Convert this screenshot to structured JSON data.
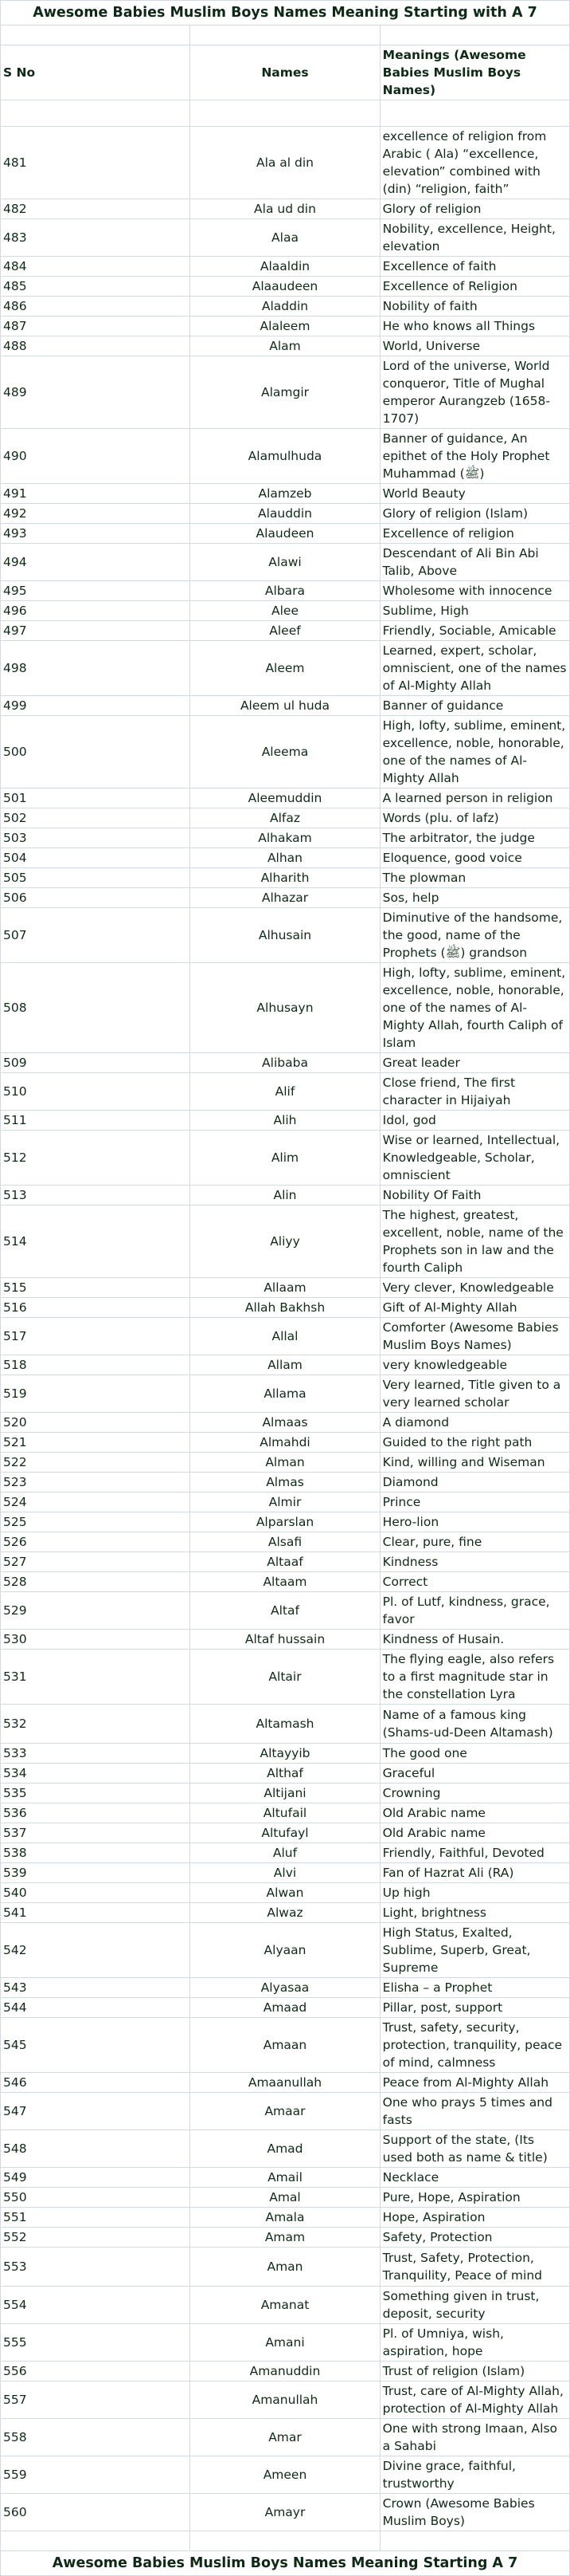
{
  "title": "Awesome Babies Muslim Boys Names Meaning Starting with A 7",
  "footer_title": "Awesome Babies Muslim Boys Names Meaning Starting A 7",
  "columns": [
    "S No",
    "Names",
    "Meanings (Awesome Babies Muslim Boys Names)"
  ],
  "colors": {
    "text": "#0f2a16",
    "border": "#d3d9e2"
  },
  "rows": [
    [
      "481",
      "Ala al din",
      "excellence of religion from Arabic ( Ala) “excellence, elevation” combined with (din) “religion, faith”"
    ],
    [
      "482",
      "Ala ud din",
      "Glory of religion"
    ],
    [
      "483",
      "Alaa",
      "Nobility, excellence, Height, elevation"
    ],
    [
      "484",
      "Alaaldin",
      "Excellence of faith"
    ],
    [
      "485",
      "Alaaudeen",
      "Excellence of Religion"
    ],
    [
      "486",
      "Aladdin",
      "Nobility of faith"
    ],
    [
      "487",
      "Alaleem",
      "He who knows all Things"
    ],
    [
      "488",
      "Alam",
      "World, Universe"
    ],
    [
      "489",
      "Alamgir",
      "Lord of the universe, World conqueror, Title of Mughal emperor Aurangzeb (1658-1707)"
    ],
    [
      "490",
      "Alamulhuda",
      "Banner of guidance, An epithet of the Holy Prophet Muhammad (ﷺ)"
    ],
    [
      "491",
      "Alamzeb",
      "World Beauty"
    ],
    [
      "492",
      "Alauddin",
      "Glory of religion (Islam)"
    ],
    [
      "493",
      "Alaudeen",
      "Excellence of religion"
    ],
    [
      "494",
      "Alawi",
      "Descendant of Ali Bin Abi Talib, Above"
    ],
    [
      "495",
      "Albara",
      "Wholesome with innocence"
    ],
    [
      "496",
      "Alee",
      "Sublime, High"
    ],
    [
      "497",
      "Aleef",
      "Friendly, Sociable, Amicable"
    ],
    [
      "498",
      "Aleem",
      "Learned, expert, scholar, omniscient, one of the names of Al-Mighty Allah"
    ],
    [
      "499",
      "Aleem ul huda",
      "Banner of guidance"
    ],
    [
      "500",
      "Aleema",
      "High, lofty, sublime, eminent, excellence, noble, honorable, one of the names of Al-Mighty Allah"
    ],
    [
      "501",
      "Aleemuddin",
      "A learned person in religion"
    ],
    [
      "502",
      "Alfaz",
      "Words (plu. of lafz)"
    ],
    [
      "503",
      "Alhakam",
      "The arbitrator, the judge"
    ],
    [
      "504",
      "Alhan",
      "Eloquence, good voice"
    ],
    [
      "505",
      "Alharith",
      "The plowman"
    ],
    [
      "506",
      "Alhazar",
      "Sos, help"
    ],
    [
      "507",
      "Alhusain",
      "Diminutive of the handsome, the good, name of the Prophets (ﷺ) grandson"
    ],
    [
      "508",
      "Alhusayn",
      "High, lofty, sublime, eminent, excellence, noble, honorable, one of the names of Al-Mighty Allah, fourth Caliph of Islam"
    ],
    [
      "509",
      "Alibaba",
      "Great leader"
    ],
    [
      "510",
      "Alif",
      "Close friend, The first character in Hijaiyah"
    ],
    [
      "511",
      "Alih",
      "Idol, god"
    ],
    [
      "512",
      "Alim",
      "Wise or learned, Intellectual, Knowledgeable, Scholar, omniscient"
    ],
    [
      "513",
      "Alin",
      "Nobility Of Faith"
    ],
    [
      "514",
      "Aliyy",
      "The highest, greatest, excellent, noble, name of the Prophets son in law and the fourth Caliph"
    ],
    [
      "515",
      "Allaam",
      "Very clever, Knowledgeable"
    ],
    [
      "516",
      "Allah Bakhsh",
      "Gift of Al-Mighty Allah"
    ],
    [
      "517",
      "Allal",
      "Comforter (Awesome Babies Muslim Boys Names)"
    ],
    [
      "518",
      "Allam",
      "very knowledgeable"
    ],
    [
      "519",
      "Allama",
      "Very learned, Title given to a very learned scholar"
    ],
    [
      "520",
      "Almaas",
      "A diamond"
    ],
    [
      "521",
      "Almahdi",
      "Guided to the right path"
    ],
    [
      "522",
      "Alman",
      "Kind, willing and Wiseman"
    ],
    [
      "523",
      "Almas",
      "Diamond"
    ],
    [
      "524",
      "Almir",
      "Prince"
    ],
    [
      "525",
      "Alparslan",
      "Hero-lion"
    ],
    [
      "526",
      "Alsafi",
      "Clear, pure, fine"
    ],
    [
      "527",
      "Altaaf",
      "Kindness"
    ],
    [
      "528",
      "Altaam",
      "Correct"
    ],
    [
      "529",
      "Altaf",
      "Pl. of Lutf, kindness, grace, favor"
    ],
    [
      "530",
      "Altaf hussain",
      "Kindness of Husain."
    ],
    [
      "531",
      "Altair",
      "The flying eagle, also refers to a first magnitude star in the constellation Lyra"
    ],
    [
      "532",
      "Altamash",
      "Name of a famous king (Shams-ud-Deen Altamash)"
    ],
    [
      "533",
      "Altayyib",
      "The good one"
    ],
    [
      "534",
      "Althaf",
      "Graceful"
    ],
    [
      "535",
      "Altijani",
      "Crowning"
    ],
    [
      "536",
      "Altufail",
      "Old Arabic name"
    ],
    [
      "537",
      "Altufayl",
      "Old Arabic name"
    ],
    [
      "538",
      "Aluf",
      "Friendly, Faithful, Devoted"
    ],
    [
      "539",
      "Alvi",
      "Fan of Hazrat Ali (RA)"
    ],
    [
      "540",
      "Alwan",
      "Up high"
    ],
    [
      "541",
      "Alwaz",
      "Light, brightness"
    ],
    [
      "542",
      "Alyaan",
      "High Status, Exalted, Sublime, Superb, Great, Supreme"
    ],
    [
      "543",
      "Alyasaa",
      "Elisha – a Prophet"
    ],
    [
      "544",
      "Amaad",
      "Pillar, post, support"
    ],
    [
      "545",
      "Amaan",
      "Trust, safety, security, protection, tranquility, peace of mind, calmness"
    ],
    [
      "546",
      "Amaanullah",
      "Peace from Al-Mighty Allah"
    ],
    [
      "547",
      "Amaar",
      "One who prays 5 times and fasts"
    ],
    [
      "548",
      "Amad",
      "Support of the state, (Its used both as name & title)"
    ],
    [
      "549",
      "Amail",
      "Necklace"
    ],
    [
      "550",
      "Amal",
      "Pure, Hope, Aspiration"
    ],
    [
      "551",
      "Amala",
      "Hope, Aspiration"
    ],
    [
      "552",
      "Amam",
      "Safety, Protection"
    ],
    [
      "553",
      "Aman",
      "Trust, Safety, Protection, Tranquility, Peace of mind"
    ],
    [
      "554",
      "Amanat",
      "Something given in trust, deposit, security"
    ],
    [
      "555",
      "Amani",
      "Pl. of Umniya, wish, aspiration, hope"
    ],
    [
      "556",
      "Amanuddin",
      "Trust of religion (Islam)"
    ],
    [
      "557",
      "Amanullah",
      "Trust, care of Al-Mighty Allah, protection of Al-Mighty Allah"
    ],
    [
      "558",
      "Amar",
      "One with strong Imaan, Also a Sahabi"
    ],
    [
      "559",
      "Ameen",
      "Divine grace, faithful, trustworthy"
    ],
    [
      "560",
      "Amayr",
      "Crown (Awesome Babies Muslim Boys)"
    ]
  ]
}
